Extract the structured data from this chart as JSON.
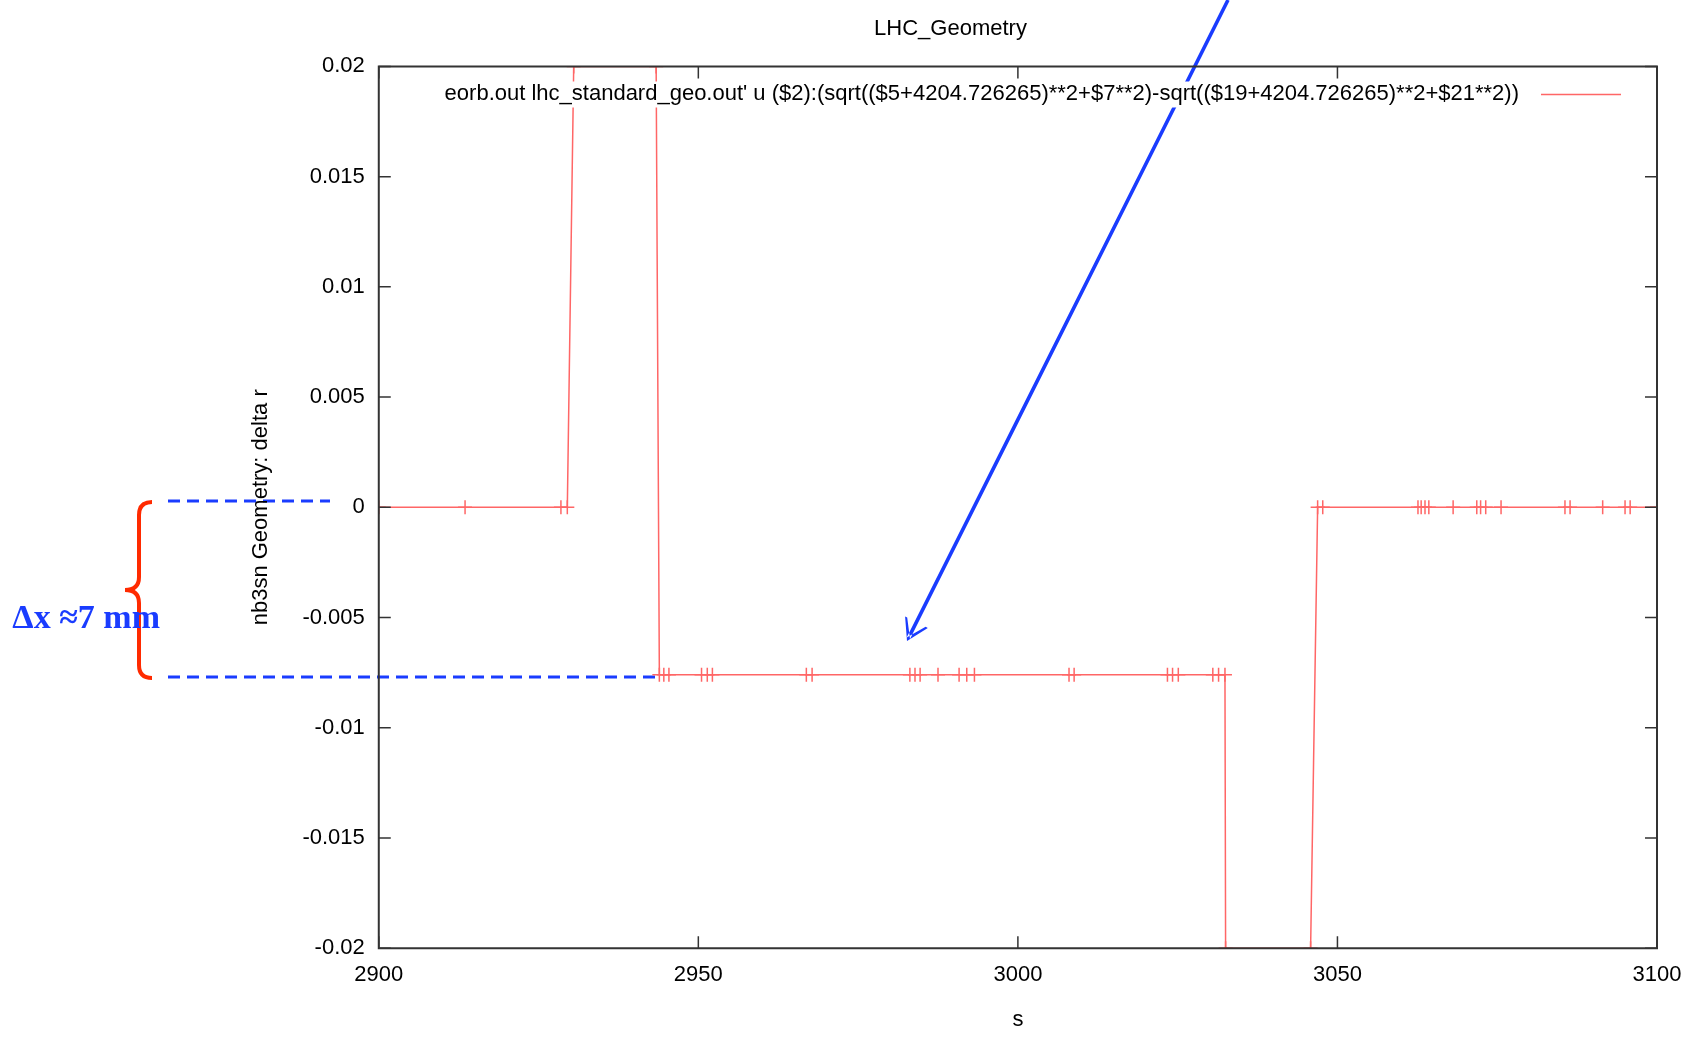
{
  "chart_data": {
    "type": "line",
    "title": "LHC_Geometry",
    "xlabel": "s",
    "ylabel": "nb3sn Geometry: delta r",
    "x": [
      2900,
      2913.5,
      2928.5,
      2929.5,
      2930.5,
      2943.4,
      2943.9,
      2944.6,
      2945.4,
      2950.5,
      2951.4,
      2952.2,
      2966.9,
      2967.8,
      2983.1,
      2983.9,
      2984.7,
      2987.5,
      2990.8,
      2992.0,
      2993.2,
      3008.0,
      3008.8,
      3023.4,
      3024.2,
      3025.1,
      3030.5,
      3031.4,
      3032.4,
      3032.5,
      3045.8,
      3046.9,
      3047.7,
      3062.6,
      3063.1,
      3063.7,
      3064.3,
      3068.1,
      3071.8,
      3072.4,
      3073.2,
      3075.6,
      3085.6,
      3086.4,
      3091.5,
      3095.0,
      3095.8,
      3100
    ],
    "series": [
      {
        "name": "eorb.out lhc_standard_geo.out' u ($2):(sqrt(($5+4204.726265)**2+$7**2)-sqrt(($19+4204.726265)**2+$21**2))",
        "color": "#ff6666",
        "values": [
          0,
          0,
          0,
          0,
          0.02,
          0.02,
          -0.0076,
          -0.0076,
          -0.0076,
          -0.0076,
          -0.0076,
          -0.0076,
          -0.0076,
          -0.0076,
          -0.0076,
          -0.0076,
          -0.0076,
          -0.0076,
          -0.0076,
          -0.0076,
          -0.0076,
          -0.0076,
          -0.0076,
          -0.0076,
          -0.0076,
          -0.0076,
          -0.0076,
          -0.0076,
          -0.0076,
          -0.02,
          -0.02,
          0,
          0,
          0,
          0,
          0,
          0,
          0,
          0,
          0,
          0,
          0,
          0,
          0,
          0,
          0,
          0,
          0
        ]
      }
    ],
    "xlim": [
      2900,
      3100
    ],
    "xticks": [
      2900,
      2950,
      3000,
      3050,
      3100
    ],
    "ylim": [
      -0.02,
      0.02
    ],
    "yticks": [
      -0.02,
      -0.015,
      -0.01,
      -0.005,
      0,
      0.005,
      0.01,
      0.015,
      0.02
    ],
    "grid": false,
    "legend": "top right",
    "marker": "cross",
    "line_style": "solid",
    "annotations": [
      {
        "text": "Δx ≈7 mm",
        "x": 2943.9,
        "y": -0.0076
      }
    ]
  }
}
